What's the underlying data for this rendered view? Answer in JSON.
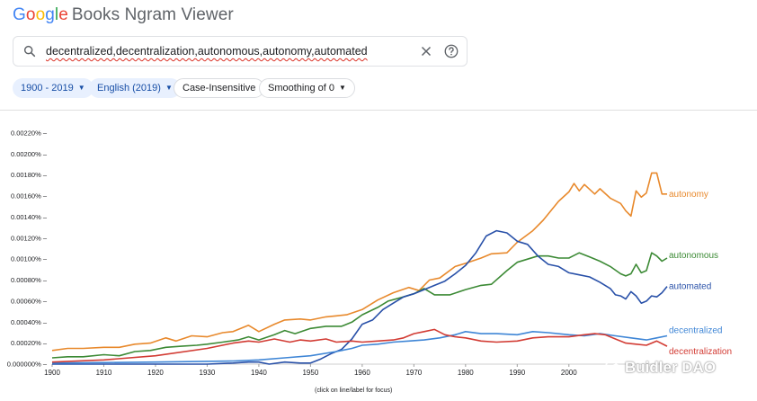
{
  "app": {
    "logo_letters": [
      {
        "ch": "G",
        "color": "#4285f4"
      },
      {
        "ch": "o",
        "color": "#ea4335"
      },
      {
        "ch": "o",
        "color": "#fbbc05"
      },
      {
        "ch": "g",
        "color": "#4285f4"
      },
      {
        "ch": "l",
        "color": "#34a853"
      },
      {
        "ch": "e",
        "color": "#ea4335"
      }
    ],
    "title_rest": "Books Ngram Viewer"
  },
  "search": {
    "query": "decentralized,decentralization,autonomous,autonomy,automated",
    "icon": "search-icon",
    "clear_icon": "close-icon",
    "help_icon": "help-icon"
  },
  "filters": {
    "years": "1900 - 2019",
    "corpus": "English (2019)",
    "case": "Case-Insensitive",
    "smoothing": "Smoothing of 0"
  },
  "chart_data": {
    "type": "line",
    "xlim": [
      1900,
      2019
    ],
    "ylim": [
      0,
      0.0022
    ],
    "x_ticks": [
      1900,
      1910,
      1920,
      1930,
      1940,
      1950,
      1960,
      1970,
      1980,
      1990,
      2000
    ],
    "y_ticks": [
      "0.000000%",
      "0.00020%",
      "0.00040%",
      "0.00060%",
      "0.00080%",
      "0.00100%",
      "0.00120%",
      "0.00140%",
      "0.00160%",
      "0.00180%",
      "0.00200%",
      "0.00220%"
    ],
    "hint": "(click on line/label for focus)",
    "series": [
      {
        "name": "autonomy",
        "color": "#e8892c",
        "points": [
          [
            1900,
            0.00013
          ],
          [
            1903,
            0.00015
          ],
          [
            1906,
            0.00015
          ],
          [
            1910,
            0.00016
          ],
          [
            1913,
            0.00016
          ],
          [
            1916,
            0.00019
          ],
          [
            1919,
            0.0002
          ],
          [
            1922,
            0.00025
          ],
          [
            1924,
            0.00022
          ],
          [
            1927,
            0.00027
          ],
          [
            1930,
            0.00026
          ],
          [
            1933,
            0.0003
          ],
          [
            1935,
            0.00031
          ],
          [
            1938,
            0.00037
          ],
          [
            1940,
            0.00031
          ],
          [
            1943,
            0.00038
          ],
          [
            1945,
            0.00042
          ],
          [
            1948,
            0.00043
          ],
          [
            1950,
            0.00042
          ],
          [
            1953,
            0.00045
          ],
          [
            1955,
            0.00046
          ],
          [
            1957,
            0.00047
          ],
          [
            1960,
            0.00052
          ],
          [
            1963,
            0.00061
          ],
          [
            1966,
            0.00068
          ],
          [
            1969,
            0.00073
          ],
          [
            1971,
            0.0007
          ],
          [
            1973,
            0.0008
          ],
          [
            1975,
            0.00082
          ],
          [
            1978,
            0.00093
          ],
          [
            1980,
            0.00096
          ],
          [
            1983,
            0.00101
          ],
          [
            1985,
            0.00105
          ],
          [
            1988,
            0.00106
          ],
          [
            1990,
            0.00116
          ],
          [
            1993,
            0.00127
          ],
          [
            1995,
            0.00137
          ],
          [
            1998,
            0.00155
          ],
          [
            2000,
            0.00164
          ],
          [
            2001,
            0.00172
          ],
          [
            2002,
            0.00165
          ],
          [
            2003,
            0.00171
          ],
          [
            2005,
            0.00162
          ],
          [
            2006,
            0.00167
          ],
          [
            2008,
            0.00158
          ],
          [
            2010,
            0.00153
          ],
          [
            2011,
            0.00146
          ],
          [
            2012,
            0.00141
          ],
          [
            2013,
            0.00165
          ],
          [
            2014,
            0.00159
          ],
          [
            2015,
            0.00163
          ],
          [
            2016,
            0.00182
          ],
          [
            2017,
            0.00182
          ],
          [
            2018,
            0.00162
          ],
          [
            2019,
            0.00162
          ]
        ]
      },
      {
        "name": "autonomous",
        "color": "#3c8a35",
        "points": [
          [
            1900,
            6e-05
          ],
          [
            1903,
            7e-05
          ],
          [
            1906,
            7e-05
          ],
          [
            1910,
            9e-05
          ],
          [
            1913,
            8e-05
          ],
          [
            1916,
            0.00012
          ],
          [
            1919,
            0.00013
          ],
          [
            1922,
            0.00016
          ],
          [
            1925,
            0.00017
          ],
          [
            1928,
            0.00018
          ],
          [
            1930,
            0.00019
          ],
          [
            1933,
            0.00021
          ],
          [
            1936,
            0.00023
          ],
          [
            1938,
            0.00026
          ],
          [
            1940,
            0.00023
          ],
          [
            1943,
            0.00028
          ],
          [
            1945,
            0.00032
          ],
          [
            1947,
            0.00029
          ],
          [
            1950,
            0.00034
          ],
          [
            1953,
            0.00036
          ],
          [
            1956,
            0.00036
          ],
          [
            1958,
            0.0004
          ],
          [
            1960,
            0.00047
          ],
          [
            1963,
            0.00054
          ],
          [
            1965,
            0.0006
          ],
          [
            1968,
            0.00064
          ],
          [
            1970,
            0.00067
          ],
          [
            1972,
            0.00072
          ],
          [
            1974,
            0.00066
          ],
          [
            1977,
            0.00066
          ],
          [
            1980,
            0.00071
          ],
          [
            1983,
            0.00075
          ],
          [
            1985,
            0.00076
          ],
          [
            1988,
            0.00089
          ],
          [
            1990,
            0.00097
          ],
          [
            1992,
            0.001
          ],
          [
            1994,
            0.00103
          ],
          [
            1996,
            0.00103
          ],
          [
            1998,
            0.00101
          ],
          [
            2000,
            0.00101
          ],
          [
            2002,
            0.00106
          ],
          [
            2004,
            0.00102
          ],
          [
            2006,
            0.00098
          ],
          [
            2008,
            0.00093
          ],
          [
            2010,
            0.00086
          ],
          [
            2011,
            0.00084
          ],
          [
            2012,
            0.00086
          ],
          [
            2013,
            0.00095
          ],
          [
            2014,
            0.00087
          ],
          [
            2015,
            0.00089
          ],
          [
            2016,
            0.00106
          ],
          [
            2017,
            0.00103
          ],
          [
            2018,
            0.00098
          ],
          [
            2019,
            0.00101
          ]
        ]
      },
      {
        "name": "automated",
        "color": "#2850a8",
        "points": [
          [
            1900,
            0.0
          ],
          [
            1920,
            0.0
          ],
          [
            1930,
            0.0
          ],
          [
            1935,
            1e-05
          ],
          [
            1938,
            2e-05
          ],
          [
            1940,
            2e-05
          ],
          [
            1942,
            0.0
          ],
          [
            1945,
            2e-05
          ],
          [
            1948,
            1e-05
          ],
          [
            1950,
            1e-05
          ],
          [
            1952,
            5e-05
          ],
          [
            1954,
            0.0001
          ],
          [
            1956,
            0.00014
          ],
          [
            1958,
            0.00024
          ],
          [
            1960,
            0.00038
          ],
          [
            1962,
            0.00042
          ],
          [
            1964,
            0.00052
          ],
          [
            1966,
            0.00058
          ],
          [
            1968,
            0.00064
          ],
          [
            1970,
            0.00067
          ],
          [
            1972,
            0.00071
          ],
          [
            1974,
            0.00075
          ],
          [
            1976,
            0.00079
          ],
          [
            1978,
            0.00086
          ],
          [
            1980,
            0.00094
          ],
          [
            1982,
            0.00106
          ],
          [
            1984,
            0.00122
          ],
          [
            1986,
            0.00127
          ],
          [
            1988,
            0.00125
          ],
          [
            1990,
            0.00117
          ],
          [
            1992,
            0.00114
          ],
          [
            1994,
            0.00103
          ],
          [
            1996,
            0.00095
          ],
          [
            1998,
            0.00093
          ],
          [
            2000,
            0.00087
          ],
          [
            2002,
            0.00085
          ],
          [
            2004,
            0.00083
          ],
          [
            2006,
            0.00078
          ],
          [
            2008,
            0.00072
          ],
          [
            2009,
            0.00066
          ],
          [
            2010,
            0.00065
          ],
          [
            2011,
            0.00062
          ],
          [
            2012,
            0.00069
          ],
          [
            2013,
            0.00065
          ],
          [
            2014,
            0.00058
          ],
          [
            2015,
            0.0006
          ],
          [
            2016,
            0.00065
          ],
          [
            2017,
            0.00064
          ],
          [
            2018,
            0.00068
          ],
          [
            2019,
            0.00074
          ]
        ]
      },
      {
        "name": "decentralized",
        "color": "#3f86d6",
        "points": [
          [
            1900,
            1e-05
          ],
          [
            1920,
            2e-05
          ],
          [
            1935,
            3e-05
          ],
          [
            1940,
            4e-05
          ],
          [
            1945,
            6e-05
          ],
          [
            1950,
            8e-05
          ],
          [
            1955,
            0.00012
          ],
          [
            1958,
            0.00015
          ],
          [
            1960,
            0.00018
          ],
          [
            1963,
            0.00019
          ],
          [
            1966,
            0.00021
          ],
          [
            1969,
            0.00022
          ],
          [
            1972,
            0.00023
          ],
          [
            1975,
            0.00025
          ],
          [
            1978,
            0.00028
          ],
          [
            1980,
            0.00031
          ],
          [
            1983,
            0.00029
          ],
          [
            1986,
            0.00029
          ],
          [
            1990,
            0.00028
          ],
          [
            1993,
            0.00031
          ],
          [
            1996,
            0.0003
          ],
          [
            2000,
            0.00028
          ],
          [
            2003,
            0.00027
          ],
          [
            2006,
            0.00029
          ],
          [
            2009,
            0.00027
          ],
          [
            2012,
            0.00025
          ],
          [
            2015,
            0.00023
          ],
          [
            2017,
            0.00025
          ],
          [
            2019,
            0.00027
          ]
        ]
      },
      {
        "name": "decentralization",
        "color": "#d23b33",
        "points": [
          [
            1900,
            2e-05
          ],
          [
            1910,
            4e-05
          ],
          [
            1920,
            8e-05
          ],
          [
            1930,
            0.00015
          ],
          [
            1935,
            0.0002
          ],
          [
            1938,
            0.00022
          ],
          [
            1940,
            0.00021
          ],
          [
            1943,
            0.00024
          ],
          [
            1946,
            0.00021
          ],
          [
            1948,
            0.00023
          ],
          [
            1950,
            0.00022
          ],
          [
            1953,
            0.00024
          ],
          [
            1955,
            0.00021
          ],
          [
            1958,
            0.00022
          ],
          [
            1960,
            0.00021
          ],
          [
            1963,
            0.00022
          ],
          [
            1966,
            0.00023
          ],
          [
            1968,
            0.00025
          ],
          [
            1970,
            0.00029
          ],
          [
            1972,
            0.00031
          ],
          [
            1974,
            0.00033
          ],
          [
            1976,
            0.00028
          ],
          [
            1978,
            0.00026
          ],
          [
            1980,
            0.00025
          ],
          [
            1983,
            0.00022
          ],
          [
            1986,
            0.00021
          ],
          [
            1990,
            0.00022
          ],
          [
            1993,
            0.00025
          ],
          [
            1996,
            0.00026
          ],
          [
            2000,
            0.00026
          ],
          [
            2003,
            0.00028
          ],
          [
            2005,
            0.00029
          ],
          [
            2007,
            0.00028
          ],
          [
            2009,
            0.00024
          ],
          [
            2011,
            0.0002
          ],
          [
            2013,
            0.00019
          ],
          [
            2015,
            0.00018
          ],
          [
            2017,
            0.00022
          ],
          [
            2019,
            0.00017
          ]
        ]
      }
    ]
  },
  "watermark": {
    "icon": "wechat-icon",
    "text": "Buidler DAO"
  }
}
